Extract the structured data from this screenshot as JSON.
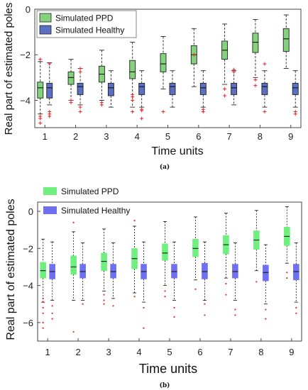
{
  "chart_data": [
    {
      "type": "box",
      "panel_label": "(a)",
      "xlabel": "Time units",
      "ylabel": "Real part of estimated poles",
      "categories": [
        "1",
        "2",
        "3",
        "4",
        "5",
        "6",
        "7",
        "8",
        "9"
      ],
      "ylim": [
        -5.2,
        0
      ],
      "yticks": [
        0,
        -2,
        -4
      ],
      "legend_placement": "top-left",
      "series": [
        {
          "name": "Simulated  PPD",
          "color": "#85d27d",
          "boxes": [
            {
              "q1": -3.9,
              "med": -3.45,
              "q3": -3.2,
              "wlo": -4.6,
              "whi": -2.3,
              "outliers": [
                -2.2,
                -4.7,
                -4.8,
                -5.0
              ]
            },
            {
              "q1": -3.3,
              "med": -3.0,
              "q3": -2.75,
              "wlo": -4.0,
              "whi": -2.2,
              "outliers": [
                -4.0,
                -4.1
              ]
            },
            {
              "q1": -3.2,
              "med": -2.85,
              "q3": -2.5,
              "wlo": -4.0,
              "whi": -1.8,
              "outliers": [
                -4.1,
                -4.2
              ]
            },
            {
              "q1": -3.05,
              "med": -2.75,
              "q3": -2.25,
              "wlo": -4.3,
              "whi": -1.45,
              "outliers": [
                -3.75,
                -3.85,
                -4.0,
                -4.5
              ]
            },
            {
              "q1": -2.75,
              "med": -2.4,
              "q3": -1.95,
              "wlo": -3.5,
              "whi": -1.2,
              "outliers": [
                -4.5
              ]
            },
            {
              "q1": -2.4,
              "med": -2.0,
              "q3": -1.6,
              "wlo": -3.4,
              "whi": -0.85,
              "outliers": [
                -2.0
              ]
            },
            {
              "q1": -2.2,
              "med": -1.8,
              "q3": -1.4,
              "wlo": -3.3,
              "whi": -0.65,
              "outliers": [
                -3.5,
                -3.8
              ]
            },
            {
              "q1": -1.9,
              "med": -1.45,
              "q3": -1.05,
              "wlo": -3.0,
              "whi": -0.45,
              "outliers": [
                -3.1,
                -3.35
              ]
            },
            {
              "q1": -1.85,
              "med": -1.3,
              "q3": -0.85,
              "wlo": -2.6,
              "whi": -0.25,
              "outliers": []
            }
          ]
        },
        {
          "name": "Simulated Healthy",
          "color": "#5b6fc4",
          "boxes": [
            {
              "q1": -3.9,
              "med": -3.45,
              "q3": -3.25,
              "wlo": -4.2,
              "whi": -2.35,
              "outliers": [
                -4.5,
                -4.6,
                -4.7,
                -2.4
              ]
            },
            {
              "q1": -3.75,
              "med": -3.4,
              "q3": -3.25,
              "wlo": -4.2,
              "whi": -2.6,
              "outliers": [
                -2.6,
                -2.75,
                -4.3,
                -4.5
              ]
            },
            {
              "q1": -3.8,
              "med": -3.45,
              "q3": -3.25,
              "wlo": -4.3,
              "whi": -2.7,
              "outliers": []
            },
            {
              "q1": -3.75,
              "med": -3.4,
              "q3": -3.25,
              "wlo": -4.3,
              "whi": -2.7,
              "outliers": [
                -4.4,
                -4.45,
                -4.8
              ]
            },
            {
              "q1": -3.75,
              "med": -3.4,
              "q3": -3.25,
              "wlo": -4.3,
              "whi": -2.7,
              "outliers": []
            },
            {
              "q1": -3.75,
              "med": -3.45,
              "q3": -3.25,
              "wlo": -4.3,
              "whi": -2.7,
              "outliers": [
                -4.4,
                -4.5
              ]
            },
            {
              "q1": -3.75,
              "med": -3.45,
              "q3": -3.25,
              "wlo": -4.2,
              "whi": -2.7,
              "outliers": [
                -2.65,
                -2.75
              ]
            },
            {
              "q1": -3.75,
              "med": -3.4,
              "q3": -3.25,
              "wlo": -4.3,
              "whi": -2.7,
              "outliers": [
                -2.4,
                -4.5
              ]
            },
            {
              "q1": -3.75,
              "med": -3.45,
              "q3": -3.25,
              "wlo": -4.3,
              "whi": -2.7,
              "outliers": [
                -4.5,
                -4.6
              ]
            }
          ]
        }
      ]
    },
    {
      "type": "box",
      "panel_label": "(b)",
      "xlabel": "Time units",
      "ylabel": "Real part of estimated poles",
      "categories": [
        "1",
        "2",
        "3",
        "4",
        "5",
        "6",
        "7",
        "8",
        "9"
      ],
      "ylim": [
        -7,
        0.5
      ],
      "yticks": [
        0,
        -2,
        -4,
        -6
      ],
      "legend_placement": "top-left",
      "series": [
        {
          "name": "Simulated PPD",
          "color": "#6ef07e",
          "boxes": [
            {
              "q1": -3.6,
              "med": -3.2,
              "q3": -2.75,
              "wlo": -4.9,
              "whi": -1.5,
              "outliers": [
                -5.2,
                -5.5,
                -6.0,
                -6.3,
                -4.9,
                -4.7
              ]
            },
            {
              "q1": -3.4,
              "med": -3.0,
              "q3": -2.4,
              "wlo": -4.8,
              "whi": -1.1,
              "outliers": [
                -0.6,
                -6.5
              ]
            },
            {
              "q1": -3.2,
              "med": -2.7,
              "q3": -2.25,
              "wlo": -4.3,
              "whi": -0.95,
              "outliers": [
                -4.5,
                -4.8,
                -5.0
              ]
            },
            {
              "q1": -3.1,
              "med": -2.55,
              "q3": -2.0,
              "wlo": -4.4,
              "whi": -0.8,
              "outliers": [
                -0.5,
                -4.6
              ]
            },
            {
              "q1": -2.65,
              "med": -2.25,
              "q3": -1.75,
              "wlo": -4.0,
              "whi": -0.55,
              "outliers": [
                -4.3,
                -4.6
              ]
            },
            {
              "q1": -2.45,
              "med": -2.0,
              "q3": -1.5,
              "wlo": -3.7,
              "whi": -0.3,
              "outliers": [
                -4.2
              ]
            },
            {
              "q1": -2.3,
              "med": -1.8,
              "q3": -1.3,
              "wlo": -3.6,
              "whi": -0.1,
              "outliers": [
                -3.9,
                -4.5
              ]
            },
            {
              "q1": -2.05,
              "med": -1.55,
              "q3": -1.05,
              "wlo": -3.2,
              "whi": 0.05,
              "outliers": [
                -3.8
              ]
            },
            {
              "q1": -1.85,
              "med": -1.35,
              "q3": -0.85,
              "wlo": -2.8,
              "whi": 0.25,
              "outliers": [
                -3.3,
                -3.6
              ]
            }
          ]
        },
        {
          "name": "Simulated Healthy",
          "color": "#6e70f0",
          "boxes": [
            {
              "q1": -3.65,
              "med": -3.25,
              "q3": -2.85,
              "wlo": -4.8,
              "whi": -1.65,
              "outliers": [
                -5.1,
                -5.5,
                -5.8
              ]
            },
            {
              "q1": -3.6,
              "med": -3.25,
              "q3": -2.85,
              "wlo": -4.8,
              "whi": -1.7,
              "outliers": [
                -5.0
              ]
            },
            {
              "q1": -3.6,
              "med": -3.25,
              "q3": -2.85,
              "wlo": -4.7,
              "whi": -1.7,
              "outliers": [
                -5.1
              ]
            },
            {
              "q1": -3.65,
              "med": -3.25,
              "q3": -2.85,
              "wlo": -4.9,
              "whi": -1.65,
              "outliers": [
                -5.2,
                -6.3
              ]
            },
            {
              "q1": -3.6,
              "med": -3.25,
              "q3": -2.85,
              "wlo": -4.8,
              "whi": -1.65,
              "outliers": [
                -5.2,
                -5.7
              ]
            },
            {
              "q1": -3.65,
              "med": -3.25,
              "q3": -2.8,
              "wlo": -4.8,
              "whi": -1.65,
              "outliers": [
                -5.0,
                -5.6
              ]
            },
            {
              "q1": -3.6,
              "med": -3.25,
              "q3": -2.85,
              "wlo": -4.8,
              "whi": -1.7,
              "outliers": [
                -5.3,
                -5.6
              ]
            },
            {
              "q1": -3.75,
              "med": -3.3,
              "q3": -2.9,
              "wlo": -5.0,
              "whi": -1.8,
              "outliers": [
                -5.3,
                -5.8
              ]
            },
            {
              "q1": -3.7,
              "med": -3.25,
              "q3": -2.85,
              "wlo": -4.9,
              "whi": -1.7,
              "outliers": [
                -5.2,
                -5.5
              ]
            }
          ]
        }
      ]
    }
  ]
}
